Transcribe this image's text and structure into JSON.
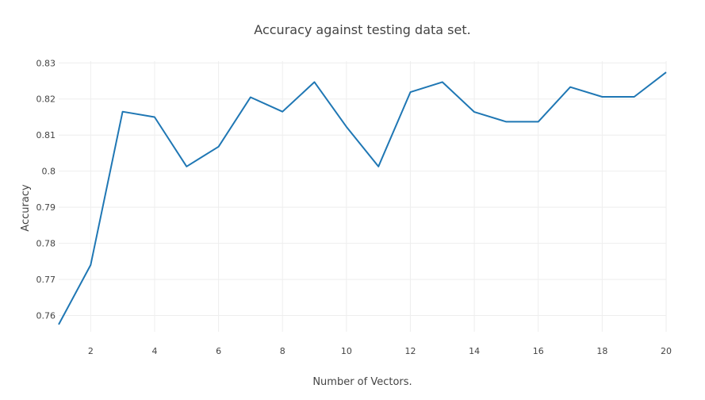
{
  "chart_data": {
    "type": "line",
    "title": "Accuracy against testing data set.",
    "xlabel": "Number of Vectors.",
    "ylabel": "Accuracy",
    "xlim": [
      1,
      20
    ],
    "ylim": [
      0.7555,
      0.8305
    ],
    "grid": true,
    "x_ticks": [
      2,
      4,
      6,
      8,
      10,
      12,
      14,
      16,
      18,
      20
    ],
    "x_tick_labels": [
      "2",
      "4",
      "6",
      "8",
      "10",
      "12",
      "14",
      "16",
      "18",
      "20"
    ],
    "y_ticks": [
      0.76,
      0.77,
      0.78,
      0.79,
      0.8,
      0.81,
      0.82,
      0.83
    ],
    "y_tick_labels": [
      "0.76",
      "0.77",
      "0.78",
      "0.79",
      "0.8",
      "0.81",
      "0.82",
      "0.83"
    ],
    "color": "#1f77b4",
    "series": [
      {
        "x": [
          1,
          2,
          3,
          4,
          5,
          6,
          7,
          8,
          9,
          10,
          11,
          12,
          13,
          14,
          15,
          16,
          17,
          18,
          19,
          20
        ],
        "values": [
          0.7575,
          0.774,
          0.8165,
          0.815,
          0.8013,
          0.8068,
          0.8205,
          0.8165,
          0.8247,
          0.8123,
          0.8013,
          0.8219,
          0.8247,
          0.8164,
          0.8137,
          0.8137,
          0.8233,
          0.8206,
          0.8206,
          0.8274
        ]
      }
    ]
  }
}
